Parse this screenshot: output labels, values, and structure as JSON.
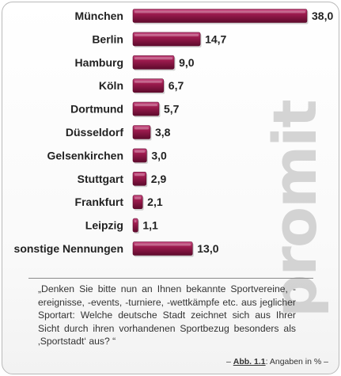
{
  "colors": {
    "bar_light": "#c6477f",
    "bar_main": "#9e1c4f",
    "bar_dark": "#5e0a2c",
    "text": "#222222",
    "watermark": "#b5b5b5"
  },
  "watermark": {
    "text": "promit"
  },
  "chart_data": {
    "type": "bar",
    "orientation": "horizontal",
    "categories": [
      "München",
      "Berlin",
      "Hamburg",
      "Köln",
      "Dortmund",
      "Düsseldorf",
      "Gelsenkirchen",
      "Stuttgart",
      "Frankfurt",
      "Leipzig",
      "sonstige Nennungen"
    ],
    "values": [
      38.0,
      14.7,
      9.0,
      6.7,
      5.7,
      3.8,
      3.0,
      2.9,
      2.1,
      1.1,
      13.0
    ],
    "value_labels": [
      "38,0",
      "14,7",
      "9,0",
      "6,7",
      "5,7",
      "3,8",
      "3,0",
      "2,9",
      "2,1",
      "1,1",
      "13,0"
    ],
    "xlim": [
      0,
      38
    ],
    "grid": false,
    "legend": "none"
  },
  "question": "„Denken Sie bitte nun an Ihnen bekannte Sportvereine, -ereignisse, -events, -turniere, -wettkämpfe etc. aus jeglicher Sportart: Welche deutsche Stadt zeichnet sich aus Ihrer Sicht durch ihren vorhandenen Sportbezug besonders als ‚Sportstadt‘ aus? “",
  "footer": {
    "dash_left": "–",
    "abb": "Abb. 1.1",
    "text": ": Angaben in %",
    "dash_right": "–"
  }
}
